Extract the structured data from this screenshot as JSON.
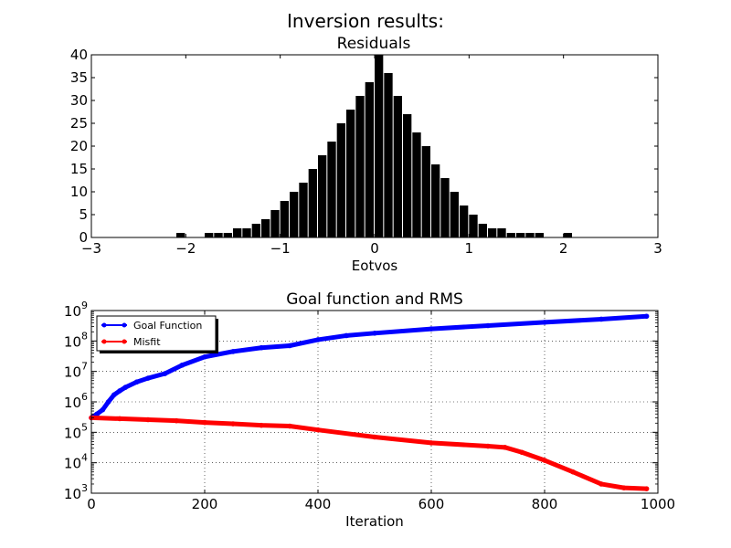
{
  "figure": {
    "suptitle": "Inversion results:"
  },
  "chart_data": [
    {
      "type": "bar",
      "title": "Residuals",
      "xlabel": "Eotvos",
      "ylabel": "",
      "xlim": [
        -3,
        3
      ],
      "ylim": [
        0,
        40
      ],
      "xticks": [
        -3,
        -2,
        -1,
        0,
        1,
        2,
        3
      ],
      "yticks": [
        0,
        5,
        10,
        15,
        20,
        25,
        30,
        35,
        40
      ],
      "xtick_labels": [
        "−3",
        "−2",
        "−1",
        "0",
        "1",
        "2",
        "3"
      ],
      "ytick_labels": [
        "0",
        "5",
        "10",
        "15",
        "20",
        "25",
        "30",
        "35",
        "40"
      ],
      "bar_color": "#000000",
      "grid": false,
      "bins": {
        "x": [
          -2.05,
          -1.95,
          -1.85,
          -1.75,
          -1.65,
          -1.55,
          -1.45,
          -1.35,
          -1.25,
          -1.15,
          -1.05,
          -0.95,
          -0.85,
          -0.75,
          -0.65,
          -0.55,
          -0.45,
          -0.35,
          -0.25,
          -0.15,
          -0.05,
          0.05,
          0.15,
          0.25,
          0.35,
          0.45,
          0.55,
          0.65,
          0.75,
          0.85,
          0.95,
          1.05,
          1.15,
          1.25,
          1.35,
          1.45,
          1.55,
          1.65,
          1.75,
          1.85,
          1.95,
          2.05
        ],
        "y": [
          1,
          0,
          0,
          1,
          1,
          1,
          2,
          2,
          3,
          4,
          6,
          8,
          10,
          12,
          15,
          18,
          21,
          25,
          28,
          31,
          34,
          40,
          36,
          31,
          27,
          23,
          20,
          16,
          13,
          10,
          7,
          5,
          3,
          2,
          2,
          1,
          1,
          1,
          1,
          0,
          0,
          1
        ]
      }
    },
    {
      "type": "line",
      "title": "Goal function and RMS",
      "xlabel": "Iteration",
      "ylabel": "",
      "xlim": [
        0,
        1000
      ],
      "ylim": [
        1000,
        1000000000
      ],
      "yscale": "log",
      "xticks": [
        0,
        200,
        400,
        600,
        800,
        1000
      ],
      "xtick_labels": [
        "0",
        "200",
        "400",
        "600",
        "800",
        "1000"
      ],
      "yticks": [
        3,
        4,
        5,
        6,
        7,
        8,
        9
      ],
      "ytick_base": "10",
      "grid": true,
      "legend": "upper-left",
      "series": [
        {
          "name": "Goal Function",
          "color": "#0000ff",
          "x": [
            0,
            10,
            20,
            30,
            40,
            50,
            60,
            80,
            100,
            130,
            160,
            200,
            250,
            300,
            350,
            400,
            450,
            500,
            600,
            700,
            800,
            900,
            980
          ],
          "y": [
            300000,
            400000,
            550000,
            1000000,
            1700000,
            2300000,
            3000000,
            4500000,
            6000000,
            8500000,
            16000000,
            30000000,
            45000000,
            60000000,
            70000000,
            110000000,
            150000000,
            180000000,
            250000000,
            320000000,
            410000000,
            520000000,
            650000000
          ]
        },
        {
          "name": "Misfit",
          "color": "#ff0000",
          "x": [
            0,
            50,
            100,
            150,
            200,
            250,
            300,
            350,
            400,
            500,
            600,
            700,
            730,
            760,
            800,
            850,
            900,
            940,
            980
          ],
          "y": [
            300000,
            280000,
            260000,
            240000,
            210000,
            190000,
            170000,
            160000,
            120000,
            70000,
            45000,
            35000,
            32000,
            22000,
            12000,
            5000,
            2000,
            1500,
            1400
          ]
        }
      ]
    }
  ]
}
